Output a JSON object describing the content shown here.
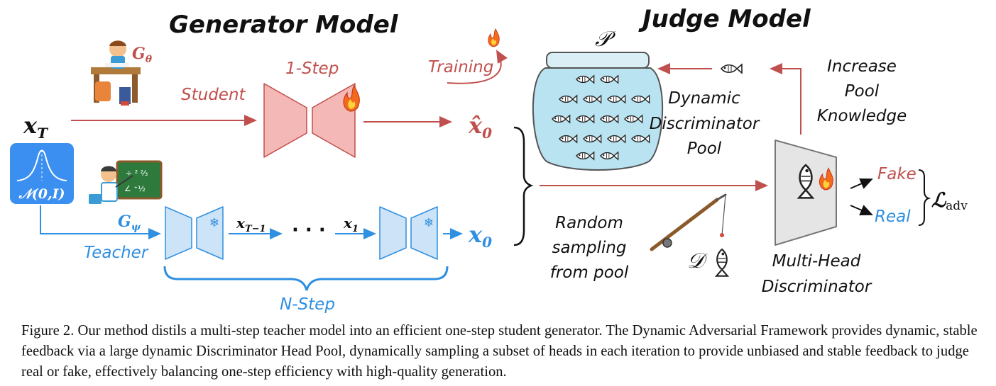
{
  "headings": {
    "generator": "Generator Model",
    "judge": "Judge Model"
  },
  "generator": {
    "student_symbol": "G_θ",
    "student_label": "Student",
    "one_step_label": "1-Step",
    "training_label": "Training",
    "input_symbol": "x_T",
    "noise_label": "𝒩(0,I)",
    "output_student": "x̂_0",
    "teacher_symbol": "G_ψ",
    "teacher_label": "Teacher",
    "intermediate_1": "x_T−1",
    "ellipsis": "· · ·",
    "intermediate_2": "x_1",
    "output_teacher": "x_0",
    "n_step_label": "N-Step"
  },
  "judge": {
    "pool_symbol": "𝒫",
    "pool_label_line1": "Dynamic",
    "pool_label_line2": "Discriminator",
    "pool_label_line3": "Pool",
    "increase_line1": "Increase",
    "increase_line2": "Pool",
    "increase_line3": "Knowledge",
    "sampling_line1": "Random",
    "sampling_line2": "sampling",
    "sampling_line3": "from pool",
    "data_symbol": "𝒟",
    "disc_line1": "Multi-Head",
    "disc_line2": "Discriminator",
    "fake_label": "Fake",
    "real_label": "Real",
    "loss_symbol": "ℒ",
    "loss_subscript": "adv"
  },
  "caption": "Figure 2. Our method distils a multi-step teacher model into an efficient one-step student generator. The Dynamic Adversarial Framework provides dynamic, stable feedback via a large dynamic Discriminator Head Pool, dynamically sampling a subset of heads in each iteration to provide unbiased and stable feedback to judge real or fake, effectively balancing one-step efficiency with high-quality generation.",
  "colors": {
    "student": "#c0504d",
    "teacher": "#2f8fe0",
    "student_block": "#f4b8b6",
    "teacher_block": "#cde3f7",
    "jar": "#b9e3f0",
    "gauss": "#3b8ff0"
  },
  "icons": [
    "student-icon",
    "teacher-icon",
    "fire-icon",
    "snowflake-icon",
    "fish-icon",
    "jar-icon",
    "fishing-rod-icon"
  ]
}
